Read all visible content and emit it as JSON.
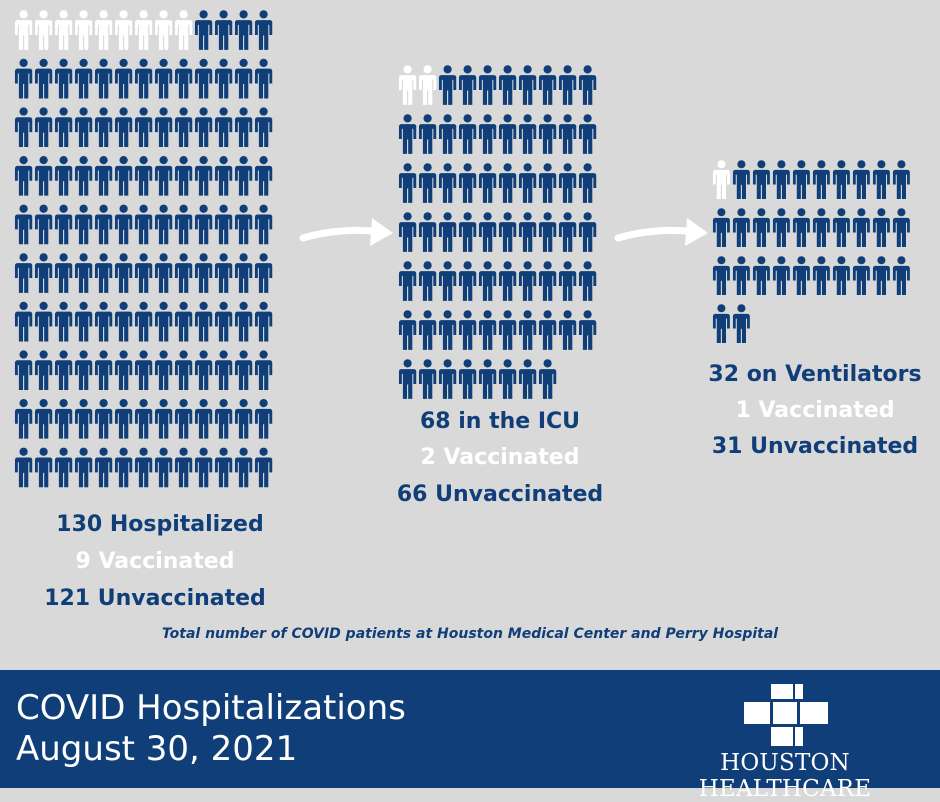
{
  "chart_data": {
    "type": "pictograph",
    "series": [
      {
        "name": "Vaccinated",
        "color": "#ffffff"
      },
      {
        "name": "Unvaccinated",
        "color": "#0f3e78"
      }
    ],
    "groups": [
      {
        "total": 130,
        "vaccinated": 9,
        "unvaccinated": 121,
        "label": "130 Hospitalized",
        "vaccinated_label": "9 Vaccinated",
        "unvaccinated_label": "121 Unvaccinated"
      },
      {
        "total": 68,
        "vaccinated": 2,
        "unvaccinated": 66,
        "label": "68 in the ICU",
        "vaccinated_label": "2 Vaccinated",
        "unvaccinated_label": "66 Unvaccinated"
      },
      {
        "total": 32,
        "vaccinated": 1,
        "unvaccinated": 31,
        "label": "32 on Ventilators",
        "vaccinated_label": "1 Vaccinated",
        "unvaccinated_label": "31 Unvaccinated"
      }
    ],
    "annotation": "Total number of COVID patients at Houston Medical Center and Perry Hospital"
  },
  "banner": {
    "title_line1": "COVID Hospitalizations",
    "title_line2": "August 30, 2021"
  },
  "logo": {
    "text": "Houston Healthcare"
  },
  "colors": {
    "background": "#d9d9d9",
    "navy": "#0f3e78",
    "white": "#ffffff"
  }
}
